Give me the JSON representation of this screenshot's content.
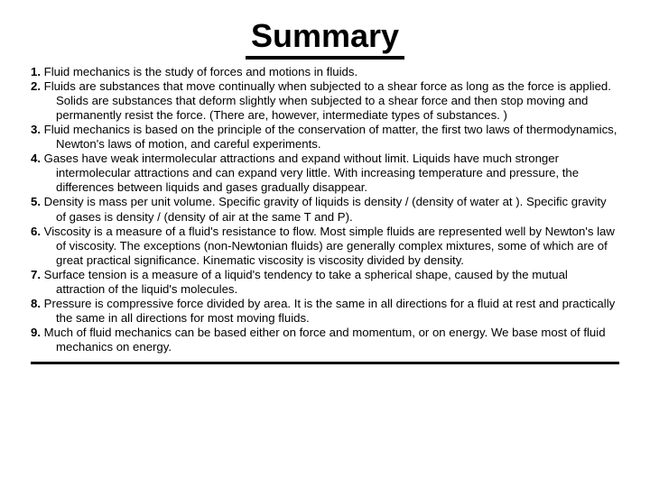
{
  "title": "Summary",
  "items": [
    {
      "num": "1.",
      "text": "Fluid mechanics is the study of forces and motions in fluids."
    },
    {
      "num": "2.",
      "text": "Fluids are substances that move continually when subjected to a shear force as long as the force is applied. Solids are substances that deform slightly when subjected to a shear force and then stop moving and permanently resist the force. (There are, however, intermediate types of substances. )"
    },
    {
      "num": "3.",
      "text": "Fluid mechanics is based on the principle of the conservation of matter, the first two laws of thermodynamics, Newton's laws of motion, and careful experiments."
    },
    {
      "num": "4.",
      "text": "Gases have weak intermolecular attractions and expand without limit. Liquids have much stronger intermolecular attractions and can expand very little. With increasing temperature and pressure, the differences between liquids and gases gradually disappear."
    },
    {
      "num": "5.",
      "text": "Density is mass per unit volume. Specific gravity of liquids is density / (density of water at ). Specific gravity of gases is density / (density of air at the same T and P)."
    },
    {
      "num": "6.",
      "text": "Viscosity is a measure of a fluid's resistance to flow. Most simple fluids are represented well by Newton's law of viscosity. The exceptions (non-Newtonian fluids) are generally complex mixtures, some of which are of great practical significance. Kinematic viscosity is viscosity divided by density."
    },
    {
      "num": "7.",
      "text": "Surface tension is a measure of a liquid's tendency to take a spherical shape, caused by the mutual attraction of the liquid's molecules."
    },
    {
      "num": "8.",
      "text": "Pressure is compressive force divided by area. It is the same in all directions for a fluid at rest and practically the same in all directions for most moving fluids."
    },
    {
      "num": "9.",
      "text": "Much of fluid mechanics can be based either on force and momentum, or on energy. We base most of fluid mechanics on energy."
    }
  ],
  "style": {
    "background_color": "#ffffff",
    "text_color": "#000000",
    "title_fontsize": 36,
    "body_fontsize": 13.2,
    "line_height": 1.22,
    "title_underline_color": "#000000",
    "title_underline_width": 4,
    "bottom_rule_color": "#000000",
    "bottom_rule_width": 3
  }
}
